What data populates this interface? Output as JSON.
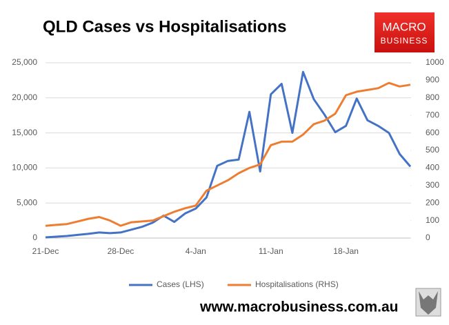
{
  "chart_data": {
    "type": "line",
    "title": "QLD Cases vs Hospitalisations",
    "categories": [
      "21-Dec",
      null,
      null,
      null,
      null,
      null,
      null,
      "28-Dec",
      null,
      null,
      null,
      null,
      null,
      null,
      "4-Jan",
      null,
      null,
      null,
      null,
      null,
      null,
      "11-Jan",
      null,
      null,
      null,
      null,
      null,
      null,
      "18-Jan",
      null,
      null,
      null,
      null,
      null,
      null
    ],
    "series": [
      {
        "name": "Cases (LHS)",
        "color": "#4472c4",
        "values": [
          100,
          200,
          300,
          450,
          600,
          800,
          700,
          800,
          1200,
          1600,
          2200,
          3200,
          2300,
          3500,
          4200,
          5800,
          10300,
          11000,
          11200,
          18000,
          9500,
          20500,
          22000,
          15000,
          23700,
          19800,
          17600,
          15100,
          16000,
          19900,
          16800,
          16000,
          15000,
          12000,
          10200
        ]
      },
      {
        "name": "Hospitalisations (RHS)",
        "color": "#ed7d31",
        "axis": "y2",
        "values": [
          70,
          75,
          80,
          95,
          110,
          120,
          100,
          70,
          90,
          95,
          100,
          125,
          150,
          170,
          185,
          270,
          300,
          330,
          370,
          400,
          420,
          530,
          550,
          550,
          590,
          650,
          670,
          710,
          815,
          835,
          845,
          855,
          885,
          865,
          875
        ]
      }
    ],
    "ylim": [
      0,
      25000
    ],
    "yticks": [
      0,
      {
        "value": 5000,
        "label": "5,000"
      },
      {
        "value": 10000,
        "label": "10,000"
      },
      {
        "value": 15000,
        "label": "15,000"
      },
      {
        "value": 20000,
        "label": "20,000"
      },
      {
        "value": 25000,
        "label": "25,000"
      }
    ],
    "y2lim": [
      0,
      1000
    ],
    "y2ticks": [
      0,
      100,
      200,
      300,
      400,
      500,
      600,
      700,
      800,
      900,
      1000
    ],
    "grid": true,
    "legend": "bottom"
  },
  "logo": [
    "MACRO",
    "BUSINESS"
  ],
  "footer": "www.macrobusiness.com.au"
}
